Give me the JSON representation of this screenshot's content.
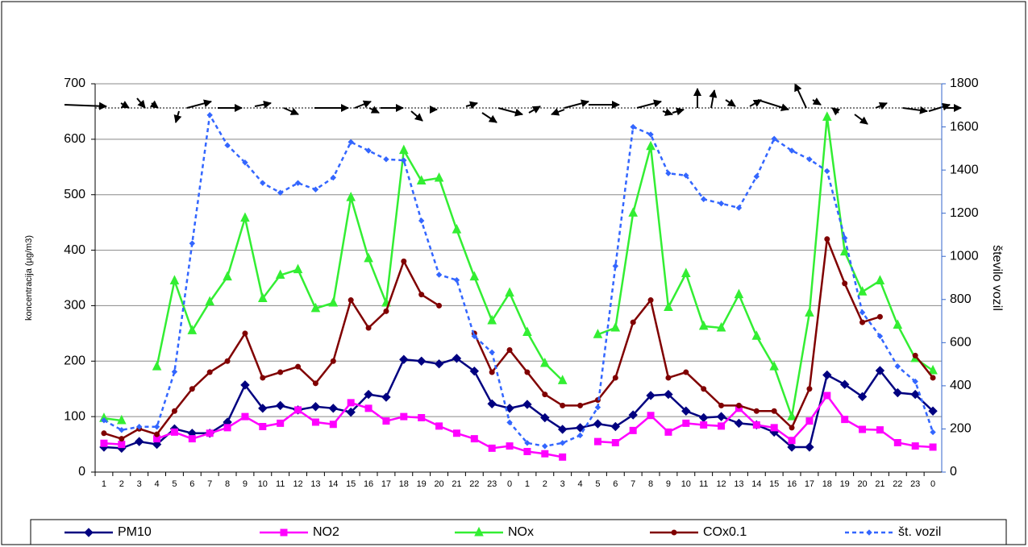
{
  "chart_data": {
    "type": "line",
    "ylabel": "koncentracija (µg/m3)",
    "y2label": "število vozil",
    "categories": [
      "1",
      "2",
      "3",
      "4",
      "5",
      "6",
      "7",
      "8",
      "9",
      "10",
      "11",
      "12",
      "13",
      "14",
      "15",
      "16",
      "17",
      "18",
      "19",
      "20",
      "21",
      "22",
      "23",
      "0",
      "1",
      "2",
      "3",
      "4",
      "5",
      "6",
      "7",
      "8",
      "9",
      "10",
      "11",
      "12",
      "13",
      "14",
      "15",
      "16",
      "17",
      "18",
      "19",
      "20",
      "21",
      "22",
      "23",
      "0"
    ],
    "ylim": [
      0,
      700
    ],
    "yticks": [
      0,
      100,
      200,
      300,
      400,
      500,
      600,
      700
    ],
    "y2lim": [
      0,
      1800
    ],
    "y2ticks": [
      0,
      200,
      400,
      600,
      800,
      1000,
      1200,
      1400,
      1600,
      1800
    ],
    "grid": true,
    "legend": "bottom",
    "series": [
      {
        "name": "PM10",
        "color": "#000080",
        "marker": "diamond",
        "values": [
          45,
          43,
          55,
          50,
          78,
          70,
          70,
          90,
          157,
          115,
          120,
          112,
          118,
          115,
          108,
          140,
          135,
          203,
          200,
          195,
          205,
          182,
          123,
          115,
          122,
          98,
          77,
          80,
          87,
          82,
          103,
          138,
          140,
          110,
          98,
          100,
          88,
          85,
          72,
          45,
          45,
          175,
          158,
          136,
          183,
          143,
          140,
          110
        ]
      },
      {
        "name": "NO2",
        "color": "#ff00ff",
        "marker": "square",
        "values": [
          52,
          50,
          null,
          60,
          72,
          60,
          70,
          80,
          100,
          82,
          88,
          112,
          90,
          86,
          125,
          115,
          92,
          100,
          98,
          83,
          70,
          60,
          43,
          47,
          37,
          33,
          27,
          null,
          55,
          53,
          75,
          102,
          72,
          88,
          85,
          83,
          115,
          85,
          80,
          57,
          92,
          138,
          95,
          77,
          76,
          53,
          47,
          45
        ]
      },
      {
        "name": "NOx",
        "color": "#33ee33",
        "marker": "triangle",
        "values": [
          97,
          93,
          null,
          190,
          345,
          255,
          307,
          352,
          458,
          313,
          355,
          365,
          295,
          305,
          495,
          385,
          305,
          580,
          525,
          530,
          437,
          352,
          273,
          323,
          252,
          196,
          165,
          null,
          248,
          260,
          467,
          587,
          297,
          358,
          263,
          260,
          320,
          245,
          190,
          100,
          287,
          640,
          397,
          325,
          345,
          265,
          205,
          183
        ]
      },
      {
        "name": "COx0.1",
        "color": "#800000",
        "marker": "circle",
        "values": [
          70,
          60,
          78,
          68,
          110,
          150,
          180,
          200,
          250,
          170,
          180,
          190,
          160,
          200,
          310,
          260,
          290,
          380,
          320,
          300,
          null,
          250,
          180,
          220,
          180,
          140,
          120,
          120,
          130,
          170,
          270,
          310,
          170,
          180,
          150,
          120,
          120,
          110,
          110,
          80,
          150,
          420,
          340,
          270,
          280,
          null,
          210,
          170
        ]
      },
      {
        "name": "št. vozil",
        "color": "#3366ff",
        "marker": "smalldiamond",
        "dashed": true,
        "axis": "y2",
        "values": [
          240,
          195,
          210,
          210,
          465,
          1060,
          1655,
          1515,
          1435,
          1340,
          1295,
          1340,
          1310,
          1365,
          1530,
          1490,
          1450,
          1445,
          1165,
          915,
          890,
          630,
          555,
          230,
          135,
          120,
          135,
          170,
          300,
          955,
          1600,
          1565,
          1385,
          1375,
          1265,
          1245,
          1225,
          1370,
          1545,
          1490,
          1450,
          1395,
          1085,
          740,
          630,
          490,
          420,
          185
        ]
      }
    ]
  }
}
